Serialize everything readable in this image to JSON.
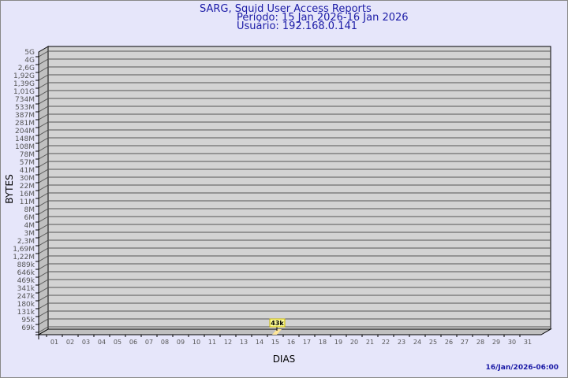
{
  "chart_data": {
    "type": "bar",
    "title": "SARG, Squid User Access Reports",
    "subtitle_period": "Período: 15 Jan 2026-16 Jan 2026",
    "subtitle_user": "Usuário: 192.168.0.141",
    "xlabel": "DIAS",
    "ylabel": "BYTES",
    "y_scale": "log",
    "y_tick_labels": [
      "5G",
      "4G",
      "2,6G",
      "1,92G",
      "1,39G",
      "1,01G",
      "734M",
      "533M",
      "387M",
      "281M",
      "204M",
      "148M",
      "108M",
      "78M",
      "57M",
      "41M",
      "30M",
      "22M",
      "16M",
      "11M",
      "8M",
      "6M",
      "4M",
      "3M",
      "2,3M",
      "1,69M",
      "1,22M",
      "889k",
      "646k",
      "469k",
      "341k",
      "247k",
      "180k",
      "131k",
      "95k",
      "69k"
    ],
    "categories": [
      "01",
      "02",
      "03",
      "04",
      "05",
      "06",
      "07",
      "08",
      "09",
      "10",
      "11",
      "12",
      "13",
      "14",
      "15",
      "16",
      "17",
      "18",
      "19",
      "20",
      "21",
      "22",
      "23",
      "24",
      "25",
      "26",
      "27",
      "28",
      "29",
      "30",
      "31"
    ],
    "points": [
      {
        "day": "15",
        "value": 43000,
        "label": "43k"
      }
    ],
    "grid": true,
    "colors": {
      "plot": "#d3d3d3",
      "bar": "#ffe699",
      "text": "#1a1aa6",
      "label_box": "#ffff99"
    }
  },
  "footer_timestamp": "16/Jan/2026-06:00"
}
